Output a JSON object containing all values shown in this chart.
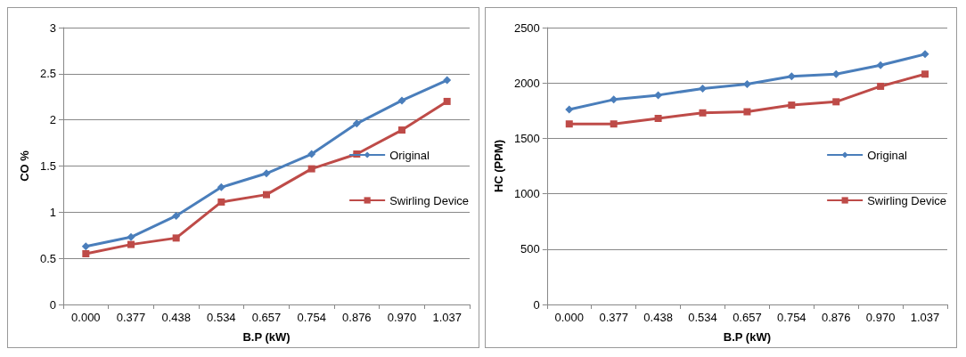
{
  "chart_data": [
    {
      "type": "line",
      "xlabel": "B.P (kW)",
      "ylabel": "CO %",
      "categories": [
        "0.000",
        "0.377",
        "0.438",
        "0.534",
        "0.657",
        "0.754",
        "0.876",
        "0.970",
        "1.037"
      ],
      "series": [
        {
          "name": "Original",
          "color": "#4a7ebb",
          "marker": "diamond",
          "values": [
            0.63,
            0.73,
            0.96,
            1.27,
            1.42,
            1.63,
            1.96,
            2.21,
            2.43
          ]
        },
        {
          "name": "Swirling Device",
          "color": "#be4b48",
          "marker": "square",
          "values": [
            0.55,
            0.65,
            0.72,
            1.11,
            1.19,
            1.47,
            1.63,
            1.89,
            2.2
          ]
        }
      ],
      "ylim": [
        0,
        3
      ],
      "yticks": [
        0,
        0.5,
        1,
        1.5,
        2,
        2.5,
        3
      ],
      "grid": "y",
      "legend": "right"
    },
    {
      "type": "line",
      "xlabel": "B.P (kW)",
      "ylabel": "HC (PPM)",
      "categories": [
        "0.000",
        "0.377",
        "0.438",
        "0.534",
        "0.657",
        "0.754",
        "0.876",
        "0.970",
        "1.037"
      ],
      "series": [
        {
          "name": "Original",
          "color": "#4a7ebb",
          "marker": "diamond",
          "values": [
            1760,
            1850,
            1890,
            1950,
            1990,
            2060,
            2080,
            2160,
            2260
          ]
        },
        {
          "name": "Swirling Device",
          "color": "#be4b48",
          "marker": "square",
          "values": [
            1630,
            1630,
            1680,
            1730,
            1740,
            1800,
            1830,
            1970,
            2080
          ]
        }
      ],
      "ylim": [
        0,
        2500
      ],
      "yticks": [
        0,
        500,
        1000,
        1500,
        2000,
        2500
      ],
      "grid": "y",
      "legend": "right"
    }
  ]
}
